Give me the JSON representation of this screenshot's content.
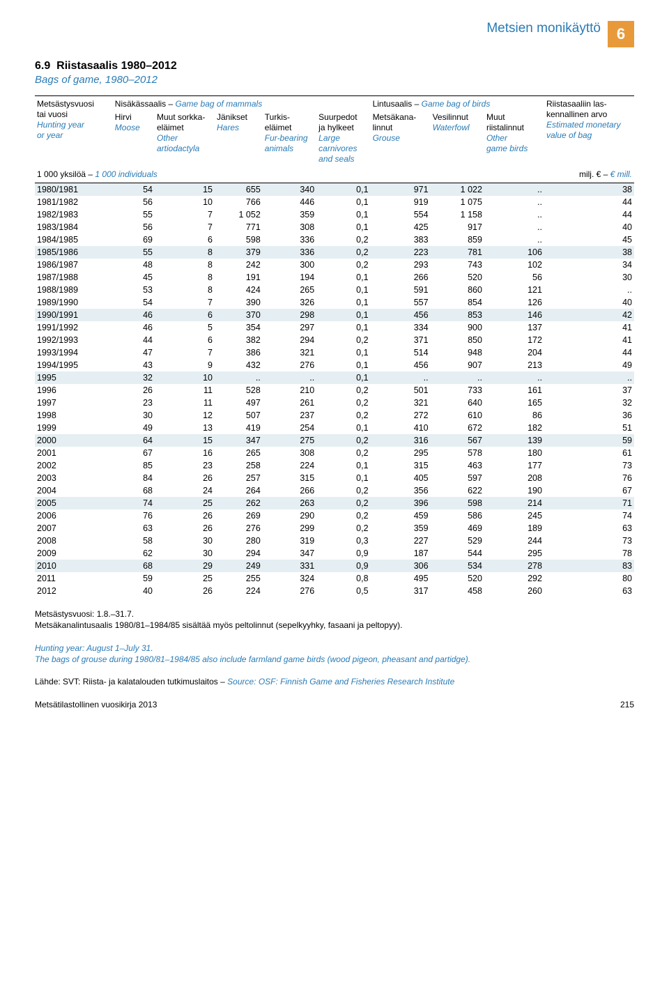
{
  "header": {
    "title": "Metsien monikäyttö",
    "badge": "6"
  },
  "section": {
    "num": "6.9",
    "title_fi": "Riistasaalis 1980–2012",
    "title_en": "Bags of game, 1980–2012"
  },
  "columns": {
    "c0": {
      "fi1": "Metsästysvuosi",
      "fi2": "tai vuosi",
      "en1": "Hunting year",
      "en2": "or year"
    },
    "group1": {
      "fi": "Nisäkässaalis –",
      "en": "Game bag of mammals"
    },
    "c1": {
      "fi": "Hirvi",
      "en": "Moose"
    },
    "c2": {
      "fi1": "Muut sorkka-",
      "fi2": "eläimet",
      "en1": "Other",
      "en2": "artiodactyla"
    },
    "c3": {
      "fi": "Jänikset",
      "en": "Hares"
    },
    "c4": {
      "fi1": "Turkis-",
      "fi2": "eläimet",
      "en1": "Fur-bearing",
      "en2": "animals"
    },
    "c5": {
      "fi1": "Suurpedot",
      "fi2": "ja hylkeet",
      "en1": "Large",
      "en2": "carnivores",
      "en3": "and seals"
    },
    "group2": {
      "fi": "Lintusaalis –",
      "en": "Game bag of birds"
    },
    "c6": {
      "fi1": "Metsäkana-",
      "fi2": "linnut",
      "en": "Grouse"
    },
    "c7": {
      "fi": "Vesilinnut",
      "en": "Waterfowl"
    },
    "c8": {
      "fi1": "Muut",
      "fi2": "riistalinnut",
      "en1": "Other",
      "en2": "game birds"
    },
    "c9": {
      "fi1": "Riistasaaliin las-",
      "fi2": "kennallinen arvo",
      "en1": "Estimated monetary",
      "en2": "value of bag"
    }
  },
  "units": {
    "left_fi": "1 000 yksilöä –",
    "left_en": "1 000 individuals",
    "right_fi": "milj. € –",
    "right_en": "€ mill."
  },
  "rows": [
    [
      "1980/1981",
      "54",
      "15",
      "655",
      "340",
      "0,1",
      "971",
      "1 022",
      "..",
      "38"
    ],
    [
      "1981/1982",
      "56",
      "10",
      "766",
      "446",
      "0,1",
      "919",
      "1 075",
      "..",
      "44"
    ],
    [
      "1982/1983",
      "55",
      "7",
      "1 052",
      "359",
      "0,1",
      "554",
      "1 158",
      "..",
      "44"
    ],
    [
      "1983/1984",
      "56",
      "7",
      "771",
      "308",
      "0,1",
      "425",
      "917",
      "..",
      "40"
    ],
    [
      "1984/1985",
      "69",
      "6",
      "598",
      "336",
      "0,2",
      "383",
      "859",
      "..",
      "45"
    ],
    [
      "1985/1986",
      "55",
      "8",
      "379",
      "336",
      "0,2",
      "223",
      "781",
      "106",
      "38"
    ],
    [
      "1986/1987",
      "48",
      "8",
      "242",
      "300",
      "0,2",
      "293",
      "743",
      "102",
      "34"
    ],
    [
      "1987/1988",
      "45",
      "8",
      "191",
      "194",
      "0,1",
      "266",
      "520",
      "56",
      "30"
    ],
    [
      "1988/1989",
      "53",
      "8",
      "424",
      "265",
      "0,1",
      "591",
      "860",
      "121",
      ".."
    ],
    [
      "1989/1990",
      "54",
      "7",
      "390",
      "326",
      "0,1",
      "557",
      "854",
      "126",
      "40"
    ],
    [
      "1990/1991",
      "46",
      "6",
      "370",
      "298",
      "0,1",
      "456",
      "853",
      "146",
      "42"
    ],
    [
      "1991/1992",
      "46",
      "5",
      "354",
      "297",
      "0,1",
      "334",
      "900",
      "137",
      "41"
    ],
    [
      "1992/1993",
      "44",
      "6",
      "382",
      "294",
      "0,2",
      "371",
      "850",
      "172",
      "41"
    ],
    [
      "1993/1994",
      "47",
      "7",
      "386",
      "321",
      "0,1",
      "514",
      "948",
      "204",
      "44"
    ],
    [
      "1994/1995",
      "43",
      "9",
      "432",
      "276",
      "0,1",
      "456",
      "907",
      "213",
      "49"
    ],
    [
      "1995",
      "32",
      "10",
      "..",
      "..",
      "0,1",
      "..",
      "..",
      "..",
      ".."
    ],
    [
      "1996",
      "26",
      "11",
      "528",
      "210",
      "0,2",
      "501",
      "733",
      "161",
      "37"
    ],
    [
      "1997",
      "23",
      "11",
      "497",
      "261",
      "0,2",
      "321",
      "640",
      "165",
      "32"
    ],
    [
      "1998",
      "30",
      "12",
      "507",
      "237",
      "0,2",
      "272",
      "610",
      "86",
      "36"
    ],
    [
      "1999",
      "49",
      "13",
      "419",
      "254",
      "0,1",
      "410",
      "672",
      "182",
      "51"
    ],
    [
      "2000",
      "64",
      "15",
      "347",
      "275",
      "0,2",
      "316",
      "567",
      "139",
      "59"
    ],
    [
      "2001",
      "67",
      "16",
      "265",
      "308",
      "0,2",
      "295",
      "578",
      "180",
      "61"
    ],
    [
      "2002",
      "85",
      "23",
      "258",
      "224",
      "0,1",
      "315",
      "463",
      "177",
      "73"
    ],
    [
      "2003",
      "84",
      "26",
      "257",
      "315",
      "0,1",
      "405",
      "597",
      "208",
      "76"
    ],
    [
      "2004",
      "68",
      "24",
      "264",
      "266",
      "0,2",
      "356",
      "622",
      "190",
      "67"
    ],
    [
      "2005",
      "74",
      "25",
      "262",
      "263",
      "0,2",
      "396",
      "598",
      "214",
      "71"
    ],
    [
      "2006",
      "76",
      "26",
      "269",
      "290",
      "0,2",
      "459",
      "586",
      "245",
      "74"
    ],
    [
      "2007",
      "63",
      "26",
      "276",
      "299",
      "0,2",
      "359",
      "469",
      "189",
      "63"
    ],
    [
      "2008",
      "58",
      "30",
      "280",
      "319",
      "0,3",
      "227",
      "529",
      "244",
      "73"
    ],
    [
      "2009",
      "62",
      "30",
      "294",
      "347",
      "0,9",
      "187",
      "544",
      "295",
      "78"
    ],
    [
      "2010",
      "68",
      "29",
      "249",
      "331",
      "0,9",
      "306",
      "534",
      "278",
      "83"
    ],
    [
      "2011",
      "59",
      "25",
      "255",
      "324",
      "0,8",
      "495",
      "520",
      "292",
      "80"
    ],
    [
      "2012",
      "40",
      "26",
      "224",
      "276",
      "0,5",
      "317",
      "458",
      "260",
      "63"
    ]
  ],
  "stripe_indices": [
    0,
    5,
    10,
    15,
    20,
    25,
    30
  ],
  "notes": {
    "n1": "Metsästysvuosi: 1.8.–31.7.",
    "n2": "Metsäkanalintusaalis 1980/81–1984/85 sisältää myös peltolinnut (sepelkyyhky, fasaani ja peltopyy).",
    "n3": "Hunting year: August 1–July 31.",
    "n4": "The bags of grouse during 1980/81–1984/85 also include farmland game birds (wood pigeon, pheasant and partidge).",
    "n5_fi": "Lähde: SVT: Riista- ja kalatalouden tutkimuslaitos –",
    "n5_en": "Source: OSF: Finnish Game and Fisheries Research Institute"
  },
  "footer": {
    "pub": "Metsätilastollinen vuosikirja 2013",
    "page": "215"
  },
  "col_widths": [
    "13%",
    "7%",
    "10%",
    "8%",
    "9%",
    "9%",
    "10%",
    "9%",
    "10%",
    "15%"
  ]
}
